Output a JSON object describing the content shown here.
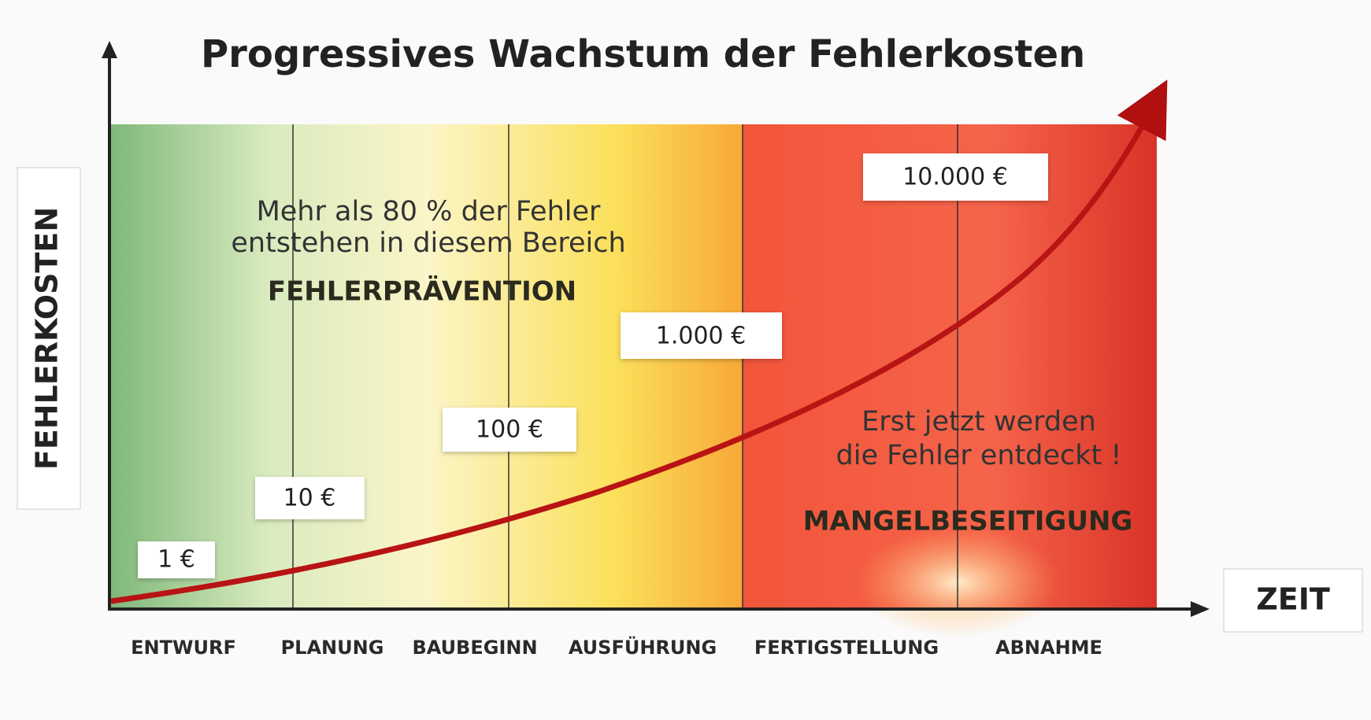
{
  "title": "Progressives Wachstum der Fehlerkosten",
  "y_axis_label": "FEHLERKOSTEN",
  "x_axis_label": "ZEIT",
  "phases": [
    "ENTWURF",
    "PLANUNG",
    "BAUBEGINN",
    "AUSFÜHRUNG",
    "FERTIGSTELLUNG",
    "ABNAHME"
  ],
  "cost_labels": [
    "1 €",
    "10 €",
    "100 €",
    "1.000 €",
    "10.000 €"
  ],
  "prevention": {
    "note": [
      "Mehr als 80 % der Fehler",
      "entstehen in diesem Bereich"
    ],
    "label": "FEHLERPRÄVENTION"
  },
  "remediation": {
    "note": [
      "Erst jetzt werden",
      "die Fehler entdeckt !"
    ],
    "label": "MANGELBESEITIGUNG"
  }
}
